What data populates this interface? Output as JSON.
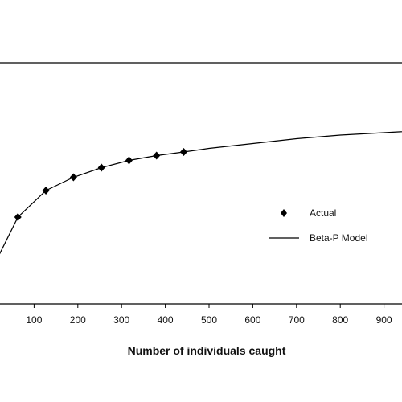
{
  "chart_data": {
    "type": "line",
    "title": "",
    "xlabel": "Number of individuals caught",
    "ylabel": "",
    "xlim": [
      0,
      1000
    ],
    "ylim": [
      0,
      1
    ],
    "x_ticks": [
      100,
      200,
      300,
      400,
      500,
      600,
      700,
      800,
      900
    ],
    "grid": false,
    "legend_position": "right",
    "series": [
      {
        "name": "Actual",
        "style": "markers",
        "marker": "diamond",
        "x": [
          63,
          127,
          190,
          254,
          317,
          380,
          442
        ],
        "y": [
          0.36,
          0.47,
          0.525,
          0.565,
          0.595,
          0.615,
          0.63
        ]
      },
      {
        "name": "Beta-P Model",
        "style": "line",
        "x": [
          0,
          63,
          127,
          190,
          254,
          317,
          380,
          442,
          500,
          600,
          700,
          800,
          900,
          1000
        ],
        "y": [
          0.13,
          0.36,
          0.47,
          0.525,
          0.565,
          0.595,
          0.615,
          0.63,
          0.645,
          0.665,
          0.685,
          0.7,
          0.71,
          0.72
        ]
      }
    ]
  }
}
